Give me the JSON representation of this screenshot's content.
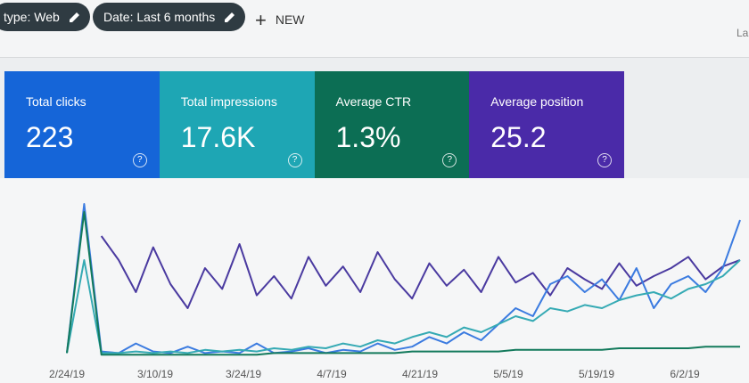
{
  "filters": [
    {
      "label": "type: Web"
    },
    {
      "label": "Date: Last 6 months"
    }
  ],
  "new_button": "NEW",
  "right_text": "La",
  "metrics": [
    {
      "label": "Total clicks",
      "value": "223",
      "color": "#1565d8"
    },
    {
      "label": "Total impressions",
      "value": "17.6K",
      "color": "#1ea6b4"
    },
    {
      "label": "Average CTR",
      "value": "1.3%",
      "color": "#0c6e54"
    },
    {
      "label": "Average position",
      "value": "25.2",
      "color": "#4a2aa8"
    }
  ],
  "chart": {
    "type": "line",
    "ylim": [
      0,
      100
    ],
    "date_labels": [
      "2/24/19",
      "3/10/19",
      "3/24/19",
      "4/7/19",
      "4/21/19",
      "5/5/19",
      "5/19/19",
      "6/2/19"
    ],
    "series": [
      {
        "color": "#4a3aa0",
        "values": [
          null,
          null,
          75,
          60,
          40,
          68,
          45,
          30,
          55,
          42,
          70,
          38,
          50,
          36,
          62,
          44,
          56,
          40,
          65,
          48,
          36,
          58,
          44,
          54,
          40,
          62,
          46,
          52,
          38,
          55,
          48,
          42,
          58,
          44,
          50,
          55,
          62,
          48,
          56,
          60
        ]
      },
      {
        "color": "#3b7be0",
        "values": [
          2,
          95,
          3,
          2,
          8,
          3,
          2,
          6,
          2,
          3,
          2,
          8,
          2,
          3,
          5,
          2,
          4,
          3,
          8,
          4,
          6,
          12,
          8,
          15,
          10,
          20,
          30,
          25,
          45,
          50,
          40,
          48,
          35,
          55,
          30,
          45,
          50,
          40,
          55,
          85
        ]
      },
      {
        "color": "#35aab4",
        "values": [
          2,
          60,
          2,
          2,
          3,
          2,
          3,
          2,
          4,
          3,
          4,
          3,
          5,
          4,
          6,
          5,
          8,
          6,
          10,
          8,
          12,
          15,
          12,
          18,
          15,
          20,
          25,
          22,
          30,
          28,
          32,
          30,
          35,
          38,
          40,
          36,
          42,
          45,
          50,
          60
        ]
      },
      {
        "color": "#137a5c",
        "values": [
          2,
          90,
          1,
          1,
          1,
          1,
          1,
          1,
          1,
          1,
          1,
          1,
          2,
          2,
          2,
          2,
          2,
          2,
          2,
          2,
          3,
          3,
          3,
          3,
          3,
          3,
          4,
          4,
          4,
          4,
          4,
          4,
          5,
          5,
          5,
          5,
          5,
          6,
          6,
          6
        ]
      }
    ]
  }
}
